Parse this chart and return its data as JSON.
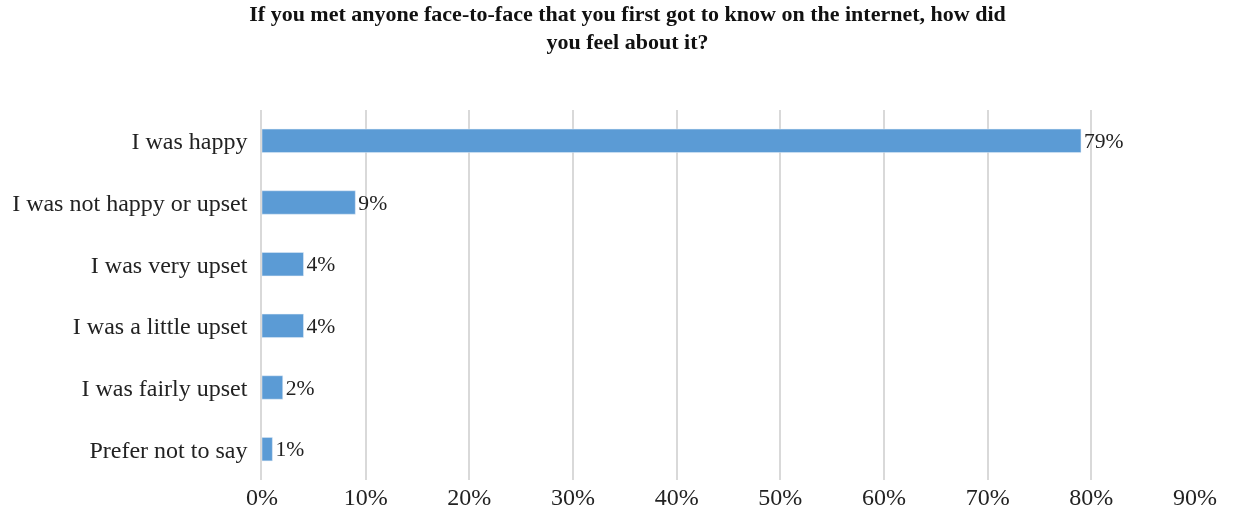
{
  "chart_data": {
    "type": "bar",
    "orientation": "horizontal",
    "title": "If you met anyone face-to-face that you first got to know on the internet, how did you feel about it?",
    "categories": [
      "I was happy",
      "I was not happy or upset",
      "I was very upset",
      "I was a little upset",
      "I was fairly upset",
      "Prefer not to say"
    ],
    "values": [
      79,
      9,
      4,
      4,
      2,
      1
    ],
    "color": "#5b9bd5",
    "xlim": [
      0,
      90
    ],
    "xticks": [
      {
        "value": 0,
        "label": "0%"
      },
      {
        "value": 10,
        "label": "10%"
      },
      {
        "value": 20,
        "label": "20%"
      },
      {
        "value": 30,
        "label": "30%"
      },
      {
        "value": 40,
        "label": "40%"
      },
      {
        "value": 50,
        "label": "50%"
      },
      {
        "value": 60,
        "label": "60%"
      },
      {
        "value": 70,
        "label": "70%"
      },
      {
        "value": 80,
        "label": "80%"
      },
      {
        "value": 90,
        "label": "90%"
      }
    ],
    "value_labels": [
      "79%",
      "9%",
      "4%",
      "4%",
      "2%",
      "1%"
    ],
    "grid": "x"
  }
}
